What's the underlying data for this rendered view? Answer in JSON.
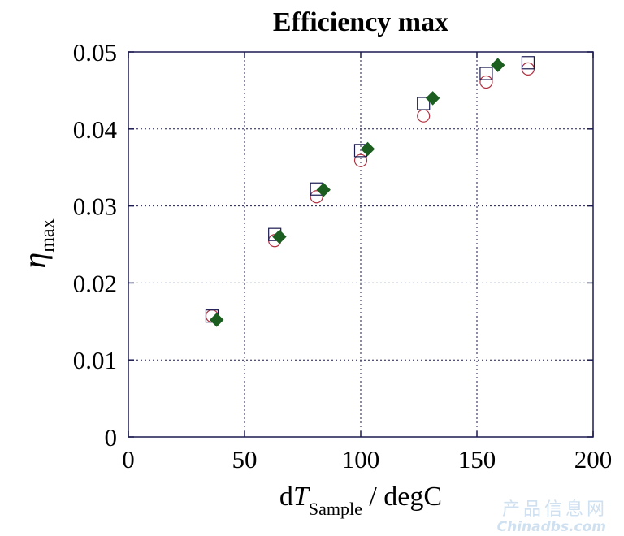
{
  "chart_data": {
    "type": "scatter",
    "title": "Efficiency max",
    "xlabel": {
      "prefix": "d",
      "symbol": "T",
      "subscript": "Sample",
      "suffix": " / degC"
    },
    "ylabel": {
      "symbol": "η",
      "subscript": "max"
    },
    "xlim": [
      0,
      200
    ],
    "ylim": [
      0,
      0.05
    ],
    "x_ticks": [
      "0",
      "50",
      "100",
      "150",
      "200"
    ],
    "y_ticks": [
      "0",
      "0.01",
      "0.02",
      "0.03",
      "0.04",
      "0.05"
    ],
    "grid": true,
    "grid_style": "dotted",
    "series": [
      {
        "marker": "circle-open",
        "color": "#b03040",
        "points": [
          [
            36,
            0.0157
          ],
          [
            63,
            0.0255
          ],
          [
            81,
            0.0312
          ],
          [
            100,
            0.0359
          ],
          [
            127,
            0.0417
          ],
          [
            154,
            0.0461
          ],
          [
            172,
            0.0478
          ]
        ]
      },
      {
        "marker": "square-open",
        "color": "#1a1a50",
        "points": [
          [
            36,
            0.0157
          ],
          [
            63,
            0.0263
          ],
          [
            81,
            0.0322
          ],
          [
            100,
            0.0372
          ],
          [
            127,
            0.0433
          ],
          [
            154,
            0.0472
          ],
          [
            172,
            0.0486
          ]
        ]
      },
      {
        "marker": "diamond-filled",
        "color": "#1b5e20",
        "points": [
          [
            38,
            0.0152
          ],
          [
            65,
            0.026
          ],
          [
            84,
            0.0321
          ],
          [
            103,
            0.0374
          ],
          [
            131,
            0.044
          ],
          [
            159,
            0.0483
          ]
        ]
      }
    ]
  },
  "watermark": {
    "line1": "产品信息网",
    "line2": "Chinadbs.com"
  }
}
